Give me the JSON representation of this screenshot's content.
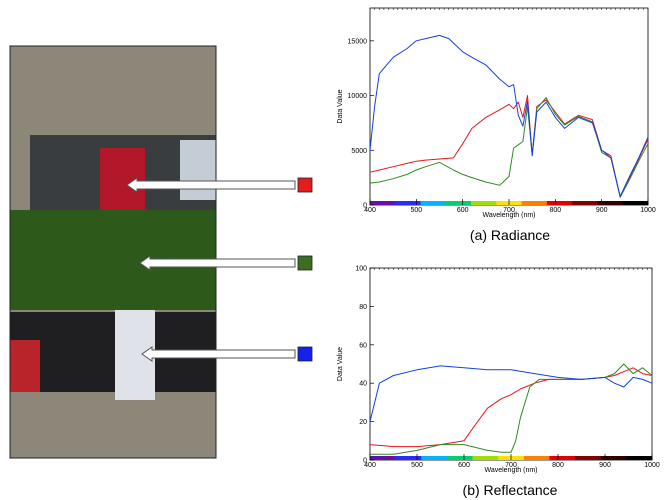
{
  "colors": {
    "red": "#e8141e",
    "green": "#2e8b22",
    "blue": "#1440e0",
    "marker_red": "#e51c1c",
    "marker_green": "#3b6e23",
    "marker_blue": "#1521ee",
    "road": "#8c8779",
    "grass": "#2d5a1a"
  },
  "markers": [
    {
      "color_key": "marker_red",
      "target": "red car"
    },
    {
      "color_key": "marker_green",
      "target": "vegetation"
    },
    {
      "color_key": "marker_blue",
      "target": "white car"
    }
  ],
  "chart_data": [
    {
      "type": "line",
      "caption": "(a) Radiance",
      "xlabel": "Wavelength (nm)",
      "ylabel": "Data Value",
      "xlim": [
        400,
        1000
      ],
      "ylim": [
        0,
        18000
      ],
      "xticks": [
        400,
        500,
        600,
        700,
        800,
        900,
        1000
      ],
      "yticks": [
        0,
        5000,
        10000,
        15000
      ],
      "series": [
        {
          "color_key": "red",
          "x": [
            400,
            420,
            450,
            480,
            500,
            520,
            550,
            580,
            600,
            620,
            650,
            680,
            700,
            710,
            720,
            730,
            740,
            750,
            760,
            780,
            800,
            820,
            850,
            880,
            900,
            920,
            940,
            950,
            960,
            980,
            1000
          ],
          "y": [
            3000,
            3200,
            3500,
            3800,
            4000,
            4100,
            4200,
            4300,
            5600,
            7000,
            8000,
            8700,
            9200,
            8800,
            9400,
            8000,
            10000,
            4600,
            9000,
            9600,
            8500,
            7400,
            8200,
            7800,
            5000,
            4500,
            700,
            1600,
            2500,
            4200,
            6000
          ]
        },
        {
          "color_key": "green",
          "x": [
            400,
            420,
            450,
            480,
            500,
            520,
            550,
            580,
            600,
            620,
            650,
            680,
            700,
            710,
            720,
            730,
            740,
            750,
            760,
            780,
            800,
            820,
            850,
            880,
            900,
            920,
            940,
            950,
            960,
            980,
            1000
          ],
          "y": [
            2000,
            2100,
            2400,
            2800,
            3200,
            3500,
            3900,
            3200,
            2800,
            2500,
            2100,
            1800,
            2600,
            5200,
            5500,
            5800,
            9000,
            4600,
            8800,
            9800,
            8300,
            7300,
            8100,
            7600,
            4800,
            4300,
            700,
            1500,
            2300,
            4000,
            5600
          ]
        },
        {
          "color_key": "blue",
          "x": [
            400,
            410,
            420,
            450,
            480,
            500,
            520,
            550,
            570,
            600,
            620,
            650,
            680,
            700,
            710,
            720,
            730,
            740,
            750,
            760,
            780,
            800,
            820,
            850,
            880,
            900,
            920,
            940,
            950,
            960,
            980,
            1000
          ],
          "y": [
            5000,
            9000,
            12000,
            13500,
            14300,
            15000,
            15200,
            15500,
            15200,
            14000,
            13500,
            12800,
            11500,
            10800,
            11000,
            8200,
            7200,
            9500,
            4500,
            8500,
            9400,
            8000,
            7000,
            8000,
            7500,
            5000,
            4300,
            800,
            1700,
            2600,
            4300,
            6200
          ]
        }
      ]
    },
    {
      "type": "line",
      "caption": "(b) Reflectance",
      "xlabel": "Wavelength (nm)",
      "ylabel": "Data Value",
      "xlim": [
        400,
        1000
      ],
      "ylim": [
        0,
        100
      ],
      "xticks": [
        400,
        500,
        600,
        700,
        800,
        900,
        1000
      ],
      "yticks": [
        0,
        20,
        40,
        60,
        80,
        100
      ],
      "series": [
        {
          "color_key": "red",
          "x": [
            400,
            450,
            500,
            550,
            600,
            620,
            650,
            680,
            700,
            720,
            750,
            780,
            800,
            850,
            900,
            920,
            940,
            960,
            980,
            1000
          ],
          "y": [
            8,
            7,
            7,
            8,
            10,
            17,
            27,
            32,
            34,
            37,
            40,
            42,
            42,
            42,
            43,
            44,
            46,
            48,
            45,
            44
          ]
        },
        {
          "color_key": "green",
          "x": [
            400,
            450,
            500,
            550,
            600,
            650,
            680,
            700,
            710,
            720,
            740,
            760,
            780,
            800,
            850,
            900,
            920,
            940,
            960,
            980,
            1000
          ],
          "y": [
            3,
            3,
            5,
            8,
            8,
            5,
            4,
            4,
            10,
            22,
            38,
            42,
            42,
            42,
            42,
            43,
            45,
            50,
            45,
            48,
            44
          ]
        },
        {
          "color_key": "blue",
          "x": [
            400,
            410,
            420,
            450,
            500,
            550,
            600,
            650,
            700,
            750,
            800,
            850,
            900,
            920,
            940,
            960,
            980,
            1000
          ],
          "y": [
            20,
            30,
            40,
            44,
            47,
            49,
            48,
            47,
            47,
            45,
            43,
            42,
            43,
            40,
            38,
            43,
            42,
            40
          ]
        }
      ]
    }
  ]
}
